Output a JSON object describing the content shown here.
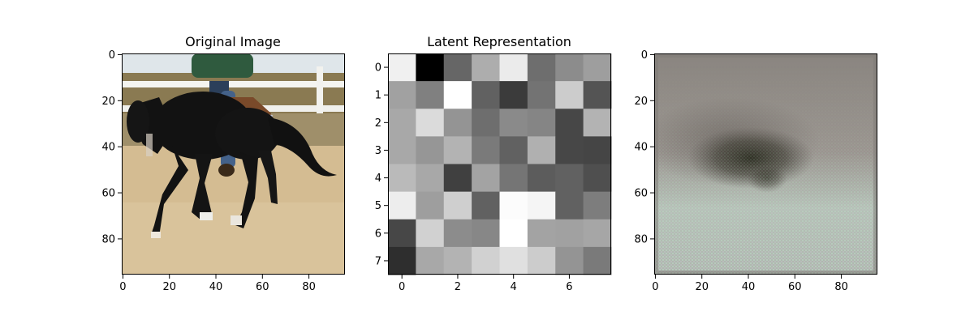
{
  "chart_data": [
    {
      "type": "image",
      "title": "Original Image",
      "image_description": "horse-and-rider",
      "xlim": [
        -0.5,
        95.5
      ],
      "ylim": [
        95.5,
        -0.5
      ],
      "xticks": [
        0,
        20,
        40,
        60,
        80
      ],
      "yticks": [
        0,
        20,
        40,
        60,
        80
      ]
    },
    {
      "type": "heatmap",
      "title": "Latent Representation",
      "colormap": "gray",
      "xlim": [
        -0.5,
        7.5
      ],
      "ylim": [
        7.5,
        -0.5
      ],
      "xticks": [
        0,
        2,
        4,
        6
      ],
      "yticks": [
        0,
        1,
        2,
        3,
        4,
        5,
        6,
        7
      ],
      "values": [
        [
          0.94,
          0.0,
          0.4,
          0.68,
          0.92,
          0.43,
          0.55,
          0.62
        ],
        [
          0.63,
          0.5,
          1.0,
          0.38,
          0.23,
          0.45,
          0.8,
          0.33
        ],
        [
          0.66,
          0.86,
          0.58,
          0.43,
          0.54,
          0.52,
          0.28,
          0.7
        ],
        [
          0.66,
          0.59,
          0.7,
          0.48,
          0.38,
          0.69,
          0.28,
          0.27
        ],
        [
          0.73,
          0.66,
          0.25,
          0.64,
          0.46,
          0.36,
          0.38,
          0.31
        ],
        [
          0.93,
          0.62,
          0.81,
          0.38,
          0.99,
          0.96,
          0.38,
          0.49
        ],
        [
          0.28,
          0.82,
          0.55,
          0.53,
          1.0,
          0.64,
          0.63,
          0.65
        ],
        [
          0.18,
          0.66,
          0.7,
          0.82,
          0.88,
          0.8,
          0.58,
          0.48
        ]
      ]
    },
    {
      "type": "image",
      "title": "",
      "image_description": "blurry-reconstruction",
      "xlim": [
        -0.5,
        95.5
      ],
      "ylim": [
        95.5,
        -0.5
      ],
      "xticks": [
        0,
        20,
        40,
        60,
        80
      ],
      "yticks": [
        0,
        20,
        40,
        60,
        80
      ]
    }
  ]
}
